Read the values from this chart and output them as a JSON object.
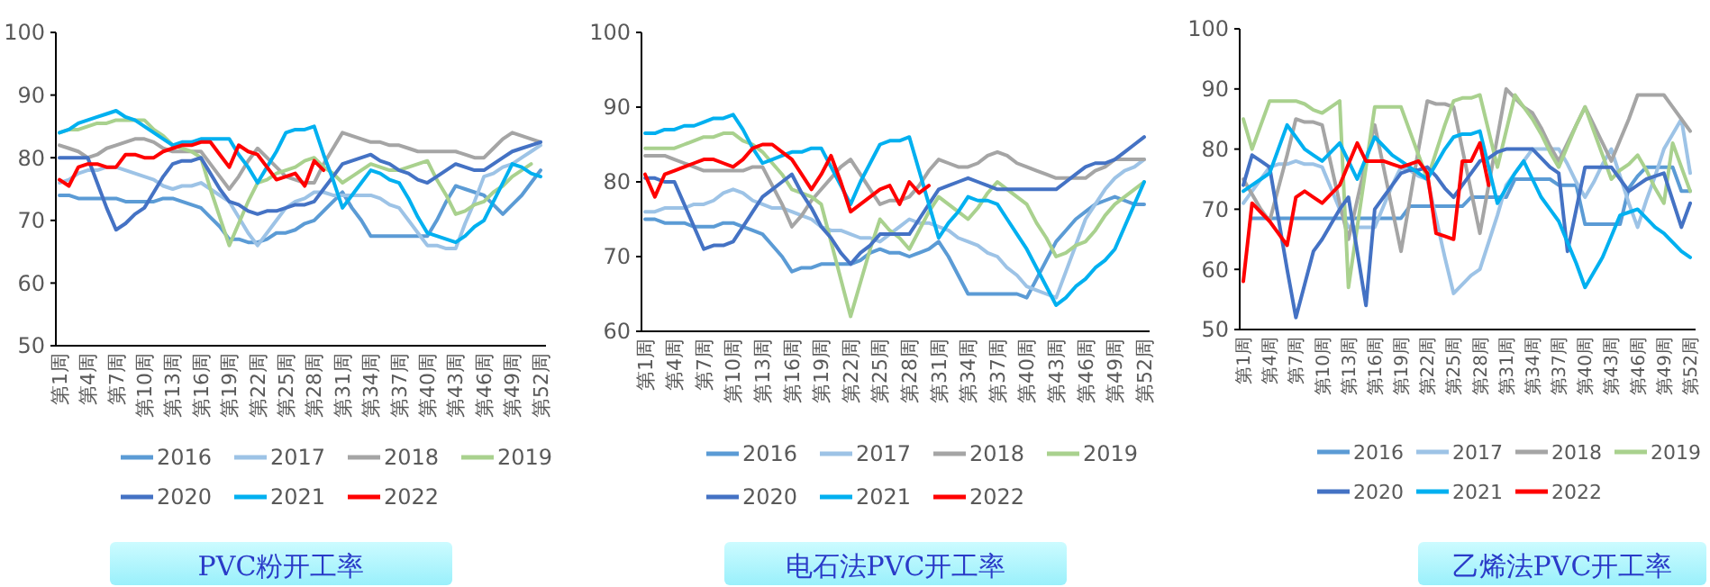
{
  "chart_data": [
    {
      "type": "line",
      "title": "PVC粉开工率",
      "categories": [
        "第1周",
        null,
        null,
        "第4周",
        null,
        null,
        "第7周",
        null,
        null,
        "第10周",
        null,
        null,
        "第13周",
        null,
        null,
        "第16周",
        null,
        null,
        "第19周",
        null,
        null,
        "第22周",
        null,
        null,
        "第25周",
        null,
        null,
        "第28周",
        null,
        null,
        "第31周",
        null,
        null,
        "第34周",
        null,
        null,
        "第37周",
        null,
        null,
        "第40周",
        null,
        null,
        "第43周",
        null,
        null,
        "第46周",
        null,
        null,
        "第49周",
        null,
        null,
        "第52周"
      ],
      "ylim": [
        50,
        100
      ],
      "yticks": [
        50,
        60,
        70,
        80,
        90,
        100
      ],
      "legend": "bottom",
      "series": [
        {
          "name": "2016",
          "color": "#5b9bd5",
          "values": [
            74,
            74,
            73.5,
            73.5,
            73.5,
            73.5,
            73.5,
            73,
            73,
            73,
            73,
            73.5,
            73.5,
            73,
            72.5,
            72,
            70.5,
            69,
            67,
            67,
            66.5,
            66.5,
            67,
            68,
            68,
            68.5,
            69.5,
            70,
            71.5,
            73,
            74.5,
            72,
            70,
            67.5,
            67.5,
            67.5,
            67.5,
            67.5,
            67.5,
            67.5,
            70,
            73,
            75.5,
            75,
            74.5,
            74,
            72.5,
            71,
            72.5,
            74,
            76,
            78
          ]
        },
        {
          "name": "2017",
          "color": "#9dc3e6",
          "values": [
            76,
            76.5,
            77.5,
            78,
            78,
            78.5,
            78.5,
            78,
            77.5,
            77,
            76.5,
            75.5,
            75,
            75.5,
            75.5,
            76,
            75,
            74,
            73,
            70.5,
            68,
            66,
            68,
            70,
            72,
            73,
            73.5,
            74.5,
            74.5,
            74,
            74,
            74,
            74,
            74,
            73.5,
            72.5,
            72,
            70,
            68,
            66,
            66,
            65.5,
            65.5,
            69.5,
            73,
            77,
            77.5,
            78.5,
            79,
            80,
            81,
            82
          ]
        },
        {
          "name": "2018",
          "color": "#a5a5a5",
          "values": [
            82,
            81.5,
            81,
            80,
            80.5,
            81.5,
            82,
            82.5,
            83,
            83,
            82.5,
            81.5,
            81,
            81,
            81,
            81,
            79,
            77,
            75,
            77,
            79.5,
            81.5,
            80,
            78.5,
            77,
            76.5,
            76,
            76,
            79,
            81.5,
            84,
            83.5,
            83,
            82.5,
            82.5,
            82,
            82,
            81.5,
            81,
            81,
            81,
            81,
            81,
            80.5,
            80,
            80,
            81.5,
            83,
            84,
            83.5,
            83,
            82.5
          ]
        },
        {
          "name": "2019",
          "color": "#a9d18e",
          "values": [
            84,
            84.5,
            84.5,
            85,
            85.5,
            85.5,
            86,
            86,
            86,
            86,
            84.5,
            83.5,
            82,
            81.5,
            81,
            80,
            75,
            70.5,
            66,
            69.5,
            73,
            76,
            76.5,
            77.5,
            78,
            78.5,
            79.5,
            80,
            78.5,
            77.5,
            76,
            77,
            78,
            79,
            78.5,
            78,
            78,
            78.5,
            79,
            79.5,
            76.5,
            74,
            71,
            71.5,
            72.5,
            73,
            74.5,
            75.5,
            77,
            78,
            79,
            null
          ]
        },
        {
          "name": "2020",
          "color": "#4472c4",
          "values": [
            80,
            80,
            80,
            80,
            76,
            72,
            68.5,
            69.5,
            71,
            72,
            74.5,
            77,
            79,
            79.5,
            79.5,
            80,
            77.5,
            75,
            73,
            72.5,
            71.5,
            71,
            71.5,
            71.5,
            72,
            72.5,
            72.5,
            73,
            75,
            77,
            79,
            79.5,
            80,
            80.5,
            79.5,
            79,
            78,
            77.5,
            76.5,
            76,
            77,
            78,
            79,
            78.5,
            78,
            78,
            79,
            80,
            81,
            81.5,
            82,
            82.5
          ]
        },
        {
          "name": "2021",
          "color": "#00b0f0",
          "values": [
            84,
            84.5,
            85.5,
            86,
            86.5,
            87,
            87.5,
            86.5,
            86,
            85,
            84,
            83,
            82,
            82.5,
            82.5,
            83,
            83,
            83,
            83,
            80.5,
            78.5,
            76,
            78.5,
            81,
            84,
            84.5,
            84.5,
            85,
            80.5,
            76.5,
            72,
            74,
            76,
            78,
            77.5,
            76.5,
            76,
            73.5,
            70.5,
            68,
            67.5,
            67,
            66.5,
            67.5,
            69,
            70,
            73,
            76,
            79,
            78.5,
            77.5,
            77
          ]
        },
        {
          "name": "2022",
          "color": "#ff0000",
          "values": [
            76.5,
            75.5,
            78.5,
            79,
            79,
            78.5,
            78.5,
            80.5,
            80.5,
            80,
            80,
            81,
            81.5,
            82,
            82,
            82.5,
            82.5,
            80.5,
            78.5,
            82,
            81,
            80.5,
            78.5,
            76.5,
            77,
            77.5,
            75.5,
            79.5,
            78,
            null,
            null,
            null,
            null,
            null,
            null,
            null,
            null,
            null,
            null,
            null,
            null,
            null,
            null,
            null,
            null,
            null,
            null,
            null,
            null,
            null,
            null,
            null
          ]
        }
      ]
    },
    {
      "type": "line",
      "title": "电石法PVC开工率",
      "categories": [
        "第1周",
        null,
        null,
        "第4周",
        null,
        null,
        "第7周",
        null,
        null,
        "第10周",
        null,
        null,
        "第13周",
        null,
        null,
        "第16周",
        null,
        null,
        "第19周",
        null,
        null,
        "第22周",
        null,
        null,
        "第25周",
        null,
        null,
        "第28周",
        null,
        null,
        "第31周",
        null,
        null,
        "第34周",
        null,
        null,
        "第37周",
        null,
        null,
        "第40周",
        null,
        null,
        "第43周",
        null,
        null,
        "第46周",
        null,
        null,
        "第49周",
        null,
        null,
        "第52周"
      ],
      "ylim": [
        60,
        100
      ],
      "yticks": [
        60,
        70,
        80,
        90,
        100
      ],
      "legend": "bottom",
      "series": [
        {
          "name": "2016",
          "color": "#5b9bd5",
          "values": [
            75,
            75,
            74.5,
            74.5,
            74.5,
            74,
            74,
            74,
            74.5,
            74.5,
            74,
            73.5,
            73,
            71.5,
            70,
            68,
            68.5,
            68.5,
            69,
            69,
            69,
            69,
            69.5,
            70.5,
            71,
            70.5,
            70.5,
            70,
            70.5,
            71,
            72,
            70,
            67.5,
            65,
            65,
            65,
            65,
            65,
            65,
            64.5,
            67,
            69.5,
            72,
            73.5,
            75,
            76,
            77,
            77.5,
            78,
            77.5,
            77,
            77
          ]
        },
        {
          "name": "2017",
          "color": "#9dc3e6",
          "values": [
            76,
            76,
            76.5,
            76.5,
            76.5,
            77,
            77,
            77.5,
            78.5,
            79,
            78.5,
            77.5,
            77,
            76.5,
            76.5,
            76,
            75.5,
            75,
            74,
            73.5,
            73.5,
            73,
            72.5,
            72.5,
            72,
            73,
            74,
            75,
            74.5,
            74.5,
            74,
            73.5,
            72.5,
            72,
            71.5,
            70.5,
            70,
            68.5,
            67.5,
            66,
            65.5,
            65,
            64.5,
            68,
            71.5,
            75,
            77,
            79,
            80.5,
            81.5,
            82,
            83
          ]
        },
        {
          "name": "2018",
          "color": "#a5a5a5",
          "values": [
            83.5,
            83.5,
            83.5,
            83,
            82.5,
            82,
            81.5,
            81.5,
            81.5,
            81.5,
            81.5,
            82,
            82,
            79.5,
            77,
            74,
            75.5,
            77.5,
            79,
            80.5,
            82,
            83,
            81,
            79,
            77,
            77.5,
            77.5,
            78,
            79.5,
            81.5,
            83,
            82.5,
            82,
            82,
            82.5,
            83.5,
            84,
            83.5,
            82.5,
            82,
            81.5,
            81,
            80.5,
            80.5,
            80.5,
            80.5,
            81.5,
            82,
            83,
            83,
            83,
            83
          ]
        },
        {
          "name": "2019",
          "color": "#a9d18e",
          "values": [
            84.5,
            84.5,
            84.5,
            84.5,
            85,
            85.5,
            86,
            86,
            86.5,
            86.5,
            85.5,
            85,
            84,
            82.5,
            81,
            79,
            78.5,
            78,
            77,
            72,
            67,
            62,
            66.5,
            71,
            75,
            73.5,
            72.5,
            71,
            73.5,
            76,
            78,
            77,
            76,
            75,
            76.5,
            78.5,
            80,
            79,
            78,
            77,
            74.5,
            72.5,
            70,
            70.5,
            71.5,
            72,
            73.5,
            75.5,
            77,
            78,
            79,
            80
          ]
        },
        {
          "name": "2020",
          "color": "#4472c4",
          "values": [
            80.5,
            80.5,
            80,
            80,
            77,
            74,
            71,
            71.5,
            71.5,
            72,
            74,
            76,
            78,
            79,
            80,
            81,
            78.5,
            76.5,
            74,
            72.5,
            70.5,
            69,
            70.5,
            71.5,
            73,
            73,
            73,
            73,
            75,
            77,
            79,
            79.5,
            80,
            80.5,
            80,
            79.5,
            79,
            79,
            79,
            79,
            79,
            79,
            79,
            80,
            81,
            82,
            82.5,
            82.5,
            83,
            84,
            85,
            86
          ]
        },
        {
          "name": "2021",
          "color": "#00b0f0",
          "values": [
            86.5,
            86.5,
            87,
            87,
            87.5,
            87.5,
            88,
            88.5,
            88.5,
            89,
            87,
            84.5,
            82.5,
            83,
            83.5,
            84,
            84,
            84.5,
            84.5,
            82,
            79.5,
            77,
            80,
            82.5,
            85,
            85.5,
            85.5,
            86,
            81.5,
            77,
            72.5,
            74.5,
            76,
            78,
            77.5,
            77.5,
            77,
            75,
            73,
            71,
            68.5,
            66,
            63.5,
            64.5,
            66,
            67,
            68.5,
            69.5,
            71,
            74,
            77,
            80
          ]
        },
        {
          "name": "2022",
          "color": "#ff0000",
          "values": [
            81,
            78,
            81,
            81.5,
            82,
            82.5,
            83,
            83,
            82.5,
            82,
            83,
            84.5,
            85,
            85,
            84,
            83,
            81,
            79,
            81,
            83.5,
            80,
            76,
            77,
            78,
            79,
            79.5,
            77,
            80,
            78.5,
            79.5,
            null,
            null,
            null,
            null,
            null,
            null,
            null,
            null,
            null,
            null,
            null,
            null,
            null,
            null,
            null,
            null,
            null,
            null,
            null,
            null,
            null,
            null
          ]
        }
      ]
    },
    {
      "type": "line",
      "title": "乙烯法PVC开工率",
      "categories": [
        "第1周",
        null,
        null,
        "第4周",
        null,
        null,
        "第7周",
        null,
        null,
        "第10周",
        null,
        null,
        "第13周",
        null,
        null,
        "第16周",
        null,
        null,
        "第19周",
        null,
        null,
        "第22周",
        null,
        null,
        "第25周",
        null,
        null,
        "第28周",
        null,
        null,
        "第31周",
        null,
        null,
        "第34周",
        null,
        null,
        "第37周",
        null,
        null,
        "第40周",
        null,
        null,
        "第43周",
        null,
        null,
        "第46周",
        null,
        null,
        "第49周",
        null,
        null,
        "第52周"
      ],
      "ylim": [
        50,
        100
      ],
      "yticks": [
        50,
        60,
        70,
        80,
        90,
        100
      ],
      "legend": "bottom",
      "series": [
        {
          "name": "2016",
          "color": "#5b9bd5",
          "values": [
            null,
            68.5,
            68.5,
            68.5,
            68.5,
            68.5,
            68.5,
            68.5,
            68.5,
            68.5,
            68.5,
            68.5,
            68.5,
            68.5,
            68.5,
            68.5,
            68.5,
            68.5,
            68.5,
            70.5,
            70.5,
            70.5,
            70.5,
            70.5,
            70.5,
            70.5,
            72,
            72,
            72,
            72,
            72,
            75,
            75,
            75,
            75,
            75,
            74,
            74,
            74,
            67.5,
            67.5,
            67.5,
            67.5,
            67.5,
            73.5,
            75.5,
            77,
            77,
            77,
            77,
            73,
            73
          ]
        },
        {
          "name": "2017",
          "color": "#9dc3e6",
          "values": [
            71,
            73,
            75,
            77,
            77.5,
            77.5,
            78,
            77.5,
            77.5,
            77,
            73.5,
            70,
            67,
            67,
            67,
            67,
            70.5,
            74,
            77,
            76.5,
            75.5,
            75,
            68.5,
            62,
            56,
            57.5,
            59,
            60,
            64.5,
            69,
            74,
            76,
            78,
            80,
            80,
            80,
            80,
            77.5,
            74.5,
            72,
            74.5,
            77.5,
            80,
            75.5,
            71,
            67,
            71.5,
            75.5,
            80,
            82.5,
            85,
            76
          ]
        },
        {
          "name": "2018",
          "color": "#a5a5a5",
          "values": [
            75,
            72.5,
            70,
            68,
            73.5,
            79,
            85,
            84.5,
            84.5,
            84,
            77.5,
            71,
            65,
            71.5,
            78,
            84,
            77,
            70,
            63,
            71.5,
            80,
            88,
            87.5,
            87.5,
            87,
            80,
            73,
            66,
            74,
            82,
            90,
            88.5,
            87,
            86,
            83.5,
            80.5,
            78,
            81,
            84,
            87,
            84,
            81,
            78,
            81.5,
            85,
            89,
            89,
            89,
            89,
            87,
            85,
            83
          ]
        },
        {
          "name": "2019",
          "color": "#a9d18e",
          "values": [
            85,
            80,
            84,
            88,
            88,
            88,
            88,
            87.5,
            86.5,
            86,
            87,
            88,
            57,
            67,
            77,
            87,
            87,
            87,
            87,
            83,
            79,
            75,
            79.5,
            84,
            88,
            88.5,
            88.5,
            89,
            83,
            77,
            83,
            89,
            87,
            85,
            82.5,
            79.5,
            77,
            80.5,
            84,
            87,
            83,
            79,
            75,
            76.5,
            77.5,
            79,
            76.5,
            73.5,
            71,
            81,
            77,
            73
          ]
        },
        {
          "name": "2020",
          "color": "#4472c4",
          "values": [
            74,
            79,
            78,
            77,
            68.5,
            60,
            52,
            57.5,
            63,
            65,
            67.5,
            70,
            72,
            63,
            54,
            70,
            72,
            74,
            76,
            76.5,
            76.5,
            77,
            75.5,
            73.5,
            72,
            74,
            76,
            78,
            78.5,
            79.5,
            80,
            80,
            80,
            80,
            78.5,
            77,
            76,
            63,
            70,
            77,
            77,
            77,
            77,
            75,
            73,
            74,
            75,
            75.5,
            76,
            71.5,
            67,
            71
          ]
        },
        {
          "name": "2021",
          "color": "#00b0f0",
          "values": [
            73,
            74,
            75,
            76,
            80,
            84,
            82,
            80,
            79,
            78,
            79.5,
            81,
            78,
            75,
            78.5,
            82,
            80.5,
            79,
            78,
            77,
            76,
            75,
            77.5,
            80,
            82,
            82.5,
            82.5,
            83,
            77,
            71,
            73.5,
            76,
            78,
            75,
            72,
            70,
            68,
            64.5,
            61,
            57,
            59.5,
            62,
            65.5,
            69,
            69.5,
            70,
            68.5,
            67,
            66,
            64.5,
            63,
            62
          ]
        },
        {
          "name": "2022",
          "color": "#ff0000",
          "values": [
            58,
            71,
            69.5,
            68,
            66,
            64,
            72,
            73,
            72,
            71,
            72.5,
            74,
            77.5,
            81,
            78,
            78,
            78,
            77.5,
            77,
            77.5,
            78,
            76,
            66,
            65.5,
            65,
            78,
            78,
            81,
            74,
            null,
            null,
            null,
            null,
            null,
            null,
            null,
            null,
            null,
            null,
            null,
            null,
            null,
            null,
            null,
            null,
            null,
            null,
            null,
            null,
            null,
            null,
            null
          ]
        }
      ]
    }
  ]
}
